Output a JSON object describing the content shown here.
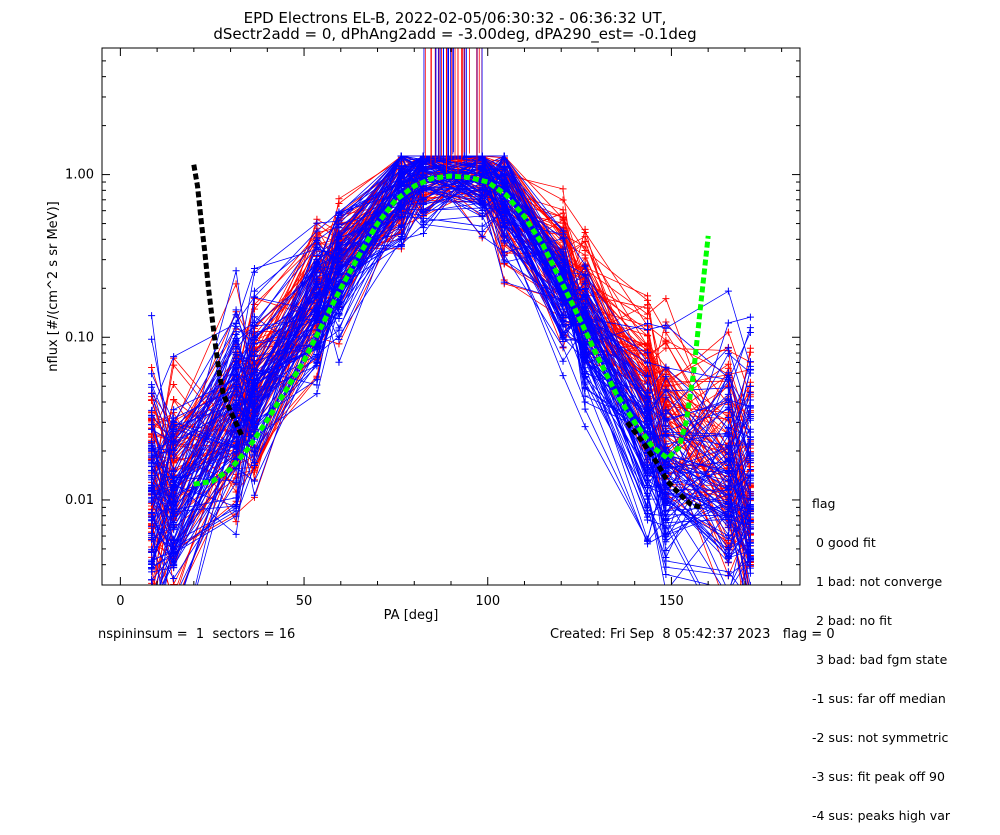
{
  "chart_data": {
    "type": "line",
    "title": "EPD Electrons EL-B, 2022-02-05/06:30:32 - 06:36:32 UT,",
    "subtitle": "dSectr2add = 0, dPhAng2add = -3.00deg, dPA290_est=  -0.1deg",
    "xlabel": "PA [deg]",
    "ylabel": "nflux [#/(cm^2 s sr MeV)]",
    "xlim": [
      -5,
      185
    ],
    "ylim": [
      0.003,
      6.0
    ],
    "yscale": "log",
    "x_ticks": [
      0,
      50,
      100,
      150
    ],
    "y_ticks": [
      0.01,
      0.1,
      1.0
    ],
    "y_tick_labels": [
      "0.01",
      "0.10",
      "1.00"
    ],
    "grid": false,
    "sector_pa_columns": [
      8.5,
      14.5,
      31.5,
      36.5,
      53.5,
      59.5,
      76.5,
      82.5,
      98.5,
      104.5,
      120.5,
      126.5,
      143.5,
      148.5,
      165.5,
      171.5
    ],
    "red_profile_peak": [
      0.011,
      0.012,
      0.03,
      0.045,
      0.2,
      0.3,
      0.85,
      1.05,
      1.15,
      0.7,
      0.26,
      0.17,
      0.05,
      0.03,
      0.015,
      0.011
    ],
    "blue_profile_peak": [
      0.008,
      0.01,
      0.03,
      0.045,
      0.16,
      0.25,
      0.8,
      1.05,
      1.0,
      0.75,
      0.2,
      0.1,
      0.023,
      0.013,
      0.012,
      0.01
    ],
    "series": [
      {
        "name": "fit",
        "color": "#00ff00",
        "points": [
          [
            20,
            0.0125
          ],
          [
            25,
            0.013
          ],
          [
            30,
            0.0155
          ],
          [
            35,
            0.021
          ],
          [
            40,
            0.031
          ],
          [
            45,
            0.047
          ],
          [
            50,
            0.072
          ],
          [
            55,
            0.12
          ],
          [
            60,
            0.2
          ],
          [
            65,
            0.32
          ],
          [
            70,
            0.5
          ],
          [
            75,
            0.7
          ],
          [
            80,
            0.85
          ],
          [
            85,
            0.95
          ],
          [
            90,
            0.98
          ],
          [
            95,
            0.96
          ],
          [
            100,
            0.9
          ],
          [
            105,
            0.75
          ],
          [
            110,
            0.55
          ],
          [
            115,
            0.37
          ],
          [
            120,
            0.22
          ],
          [
            125,
            0.13
          ],
          [
            130,
            0.075
          ],
          [
            135,
            0.045
          ],
          [
            140,
            0.03
          ],
          [
            145,
            0.021
          ],
          [
            149,
            0.018
          ],
          [
            152,
            0.021
          ],
          [
            154,
            0.03
          ],
          [
            156,
            0.06
          ],
          [
            158,
            0.16
          ],
          [
            160,
            0.42
          ]
        ]
      },
      {
        "name": "fit-edge-left",
        "color": "#000000",
        "points": [
          [
            20,
            1.15
          ],
          [
            21,
            0.85
          ],
          [
            22,
            0.52
          ],
          [
            23,
            0.33
          ],
          [
            24,
            0.2
          ],
          [
            25,
            0.13
          ],
          [
            26,
            0.085
          ],
          [
            27,
            0.058
          ],
          [
            28,
            0.045
          ],
          [
            30,
            0.035
          ],
          [
            32,
            0.028
          ],
          [
            33,
            0.025
          ]
        ]
      },
      {
        "name": "fit-edge-right",
        "color": "#000000",
        "points": [
          [
            138,
            0.03
          ],
          [
            142,
            0.023
          ],
          [
            146,
            0.017
          ],
          [
            149,
            0.013
          ],
          [
            152,
            0.011
          ],
          [
            155,
            0.0095
          ],
          [
            158,
            0.009
          ]
        ]
      }
    ]
  },
  "legend": {
    "title": "flag",
    "items": [
      " 0 good fit",
      " 1 bad: not converge",
      " 2 bad: no fit",
      " 3 bad: bad fgm state",
      "-1 sus: far off median",
      "-2 sus: not symmetric",
      "-3 sus: fit peak off 90",
      "-4 sus: peaks high var"
    ]
  },
  "footer": {
    "left": "nspininsum =  1  sectors = 16",
    "right": "Created: Fri Sep  8 05:42:37 2023   flag = 0"
  },
  "colors": {
    "red_traces": "#ff0000",
    "blue_traces": "#0000ff",
    "fit_curve": "#00ff00",
    "fit_edges": "#000000"
  }
}
